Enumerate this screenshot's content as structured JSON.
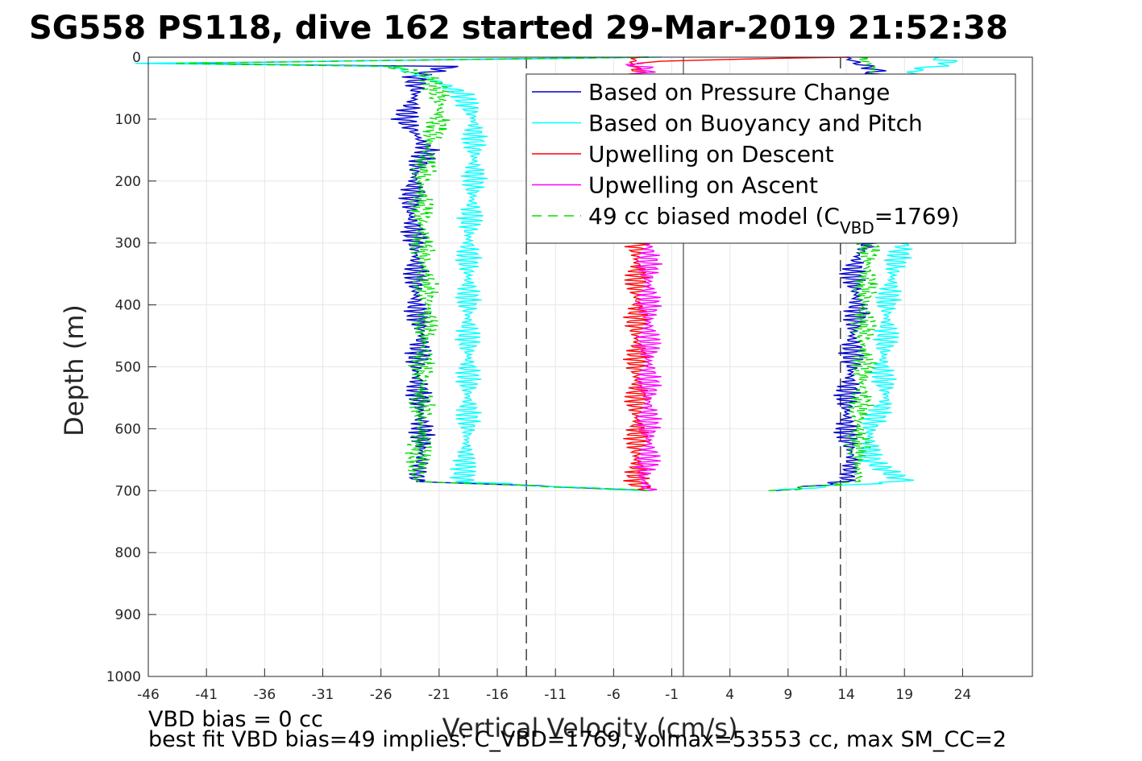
{
  "chart_data": {
    "type": "line",
    "title": "SG558 PS118, dive 162 started 29-Mar-2019 21:52:38",
    "xlabel": "Vertical Velocity (cm/s)",
    "ylabel": "Depth (m)",
    "xlim": [
      -46,
      30
    ],
    "ylim": [
      0,
      1000
    ],
    "y_reversed": true,
    "xticks": [
      -46,
      -41,
      -36,
      -31,
      -26,
      -21,
      -16,
      -11,
      -6,
      -1,
      4,
      9,
      14,
      19,
      24
    ],
    "yticks": [
      0,
      100,
      200,
      300,
      400,
      500,
      600,
      700,
      800,
      900,
      1000
    ],
    "grid": true,
    "legend_position": "top-right",
    "reference_lines": {
      "solid_x": 0,
      "dashed_x": [
        -13.5,
        13.5
      ]
    },
    "legend": [
      {
        "label": "Based on Pressure Change",
        "color": "#0000cc",
        "style": "solid"
      },
      {
        "label": "Based on Buoyancy and Pitch",
        "color": "#00ffff",
        "style": "solid"
      },
      {
        "label": "Upwelling on Descent",
        "color": "#ff0000",
        "style": "solid"
      },
      {
        "label": "Upwelling on Ascent",
        "color": "#ff00ff",
        "style": "solid"
      },
      {
        "label": "49 cc biased model (C",
        "sub": "VBD",
        "tail": "=1769)",
        "color": "#00dd00",
        "style": "dashed"
      }
    ],
    "series": [
      {
        "name": "Based on Pressure Change",
        "color": "#0000cc",
        "descent": [
          [
            0,
            -3
          ],
          [
            10,
            -45
          ],
          [
            15,
            -20
          ],
          [
            30,
            -23
          ],
          [
            60,
            -23
          ],
          [
            100,
            -24
          ],
          [
            150,
            -22
          ],
          [
            180,
            -23
          ],
          [
            250,
            -23.5
          ],
          [
            300,
            -23
          ],
          [
            400,
            -23
          ],
          [
            450,
            -22.5
          ],
          [
            500,
            -23
          ],
          [
            600,
            -22.5
          ],
          [
            650,
            -22.5
          ],
          [
            685,
            -23
          ],
          [
            692,
            -13
          ],
          [
            700,
            -3
          ]
        ],
        "ascent": [
          [
            700,
            8
          ],
          [
            693,
            11
          ],
          [
            685,
            14
          ],
          [
            650,
            14.5
          ],
          [
            600,
            14
          ],
          [
            550,
            14
          ],
          [
            500,
            14.5
          ],
          [
            450,
            14.5
          ],
          [
            400,
            15
          ],
          [
            350,
            14.5
          ],
          [
            320,
            15
          ],
          [
            300,
            16
          ],
          [
            100,
            16
          ],
          [
            50,
            16
          ],
          [
            20,
            16.5
          ],
          [
            10,
            15
          ],
          [
            0,
            14
          ]
        ]
      },
      {
        "name": "Based on Buoyancy and Pitch",
        "color": "#00ffff",
        "descent": [
          [
            0,
            -3
          ],
          [
            10,
            -46
          ],
          [
            15,
            -25
          ],
          [
            40,
            -21
          ],
          [
            60,
            -19
          ],
          [
            100,
            -18
          ],
          [
            150,
            -18
          ],
          [
            200,
            -18
          ],
          [
            300,
            -18.5
          ],
          [
            400,
            -18.5
          ],
          [
            500,
            -18.5
          ],
          [
            600,
            -18.5
          ],
          [
            685,
            -19
          ],
          [
            692,
            -13
          ],
          [
            700,
            -3
          ]
        ],
        "ascent": [
          [
            700,
            8
          ],
          [
            692,
            13
          ],
          [
            685,
            19
          ],
          [
            650,
            16
          ],
          [
            600,
            16
          ],
          [
            550,
            17.5
          ],
          [
            500,
            17
          ],
          [
            450,
            17.5
          ],
          [
            400,
            17.5
          ],
          [
            350,
            18
          ],
          [
            320,
            18.5
          ],
          [
            300,
            19
          ],
          [
            50,
            19
          ],
          [
            20,
            20
          ],
          [
            10,
            23
          ],
          [
            0,
            22
          ]
        ]
      },
      {
        "name": "Upwelling on Descent",
        "color": "#ff0000",
        "descent": [
          [
            0,
            -4
          ],
          [
            10,
            -4.5
          ],
          [
            20,
            -4
          ],
          [
            300,
            -4
          ],
          [
            400,
            -4
          ],
          [
            500,
            -4
          ],
          [
            600,
            -4
          ],
          [
            650,
            -4
          ],
          [
            690,
            -4
          ],
          [
            700,
            -3
          ]
        ],
        "ascent": [
          [
            0,
            14
          ],
          [
            5,
            0
          ],
          [
            10,
            -4
          ]
        ]
      },
      {
        "name": "Upwelling on Ascent",
        "color": "#ff00ff",
        "descent": [
          [
            10,
            -4.5
          ],
          [
            20,
            -3
          ],
          [
            30,
            -4
          ],
          [
            300,
            -3
          ],
          [
            400,
            -3
          ],
          [
            500,
            -3
          ],
          [
            600,
            -3
          ],
          [
            650,
            -3
          ],
          [
            680,
            -3.5
          ],
          [
            700,
            -3
          ]
        ],
        "ascent": []
      },
      {
        "name": "49 cc biased model (CVBD=1769)",
        "color": "#00dd00",
        "descent": [
          [
            0,
            -3
          ],
          [
            10,
            -44
          ],
          [
            15,
            -25
          ],
          [
            30,
            -22
          ],
          [
            60,
            -21
          ],
          [
            100,
            -21
          ],
          [
            150,
            -22
          ],
          [
            200,
            -22.5
          ],
          [
            300,
            -22.5
          ],
          [
            400,
            -22
          ],
          [
            500,
            -22.5
          ],
          [
            600,
            -22.5
          ],
          [
            685,
            -23
          ],
          [
            692,
            -13
          ],
          [
            700,
            -3
          ]
        ],
        "ascent": [
          [
            700,
            8
          ],
          [
            692,
            12
          ],
          [
            685,
            15
          ],
          [
            650,
            15
          ],
          [
            600,
            15
          ],
          [
            500,
            15.5
          ],
          [
            400,
            15.5
          ],
          [
            300,
            16
          ],
          [
            50,
            16
          ],
          [
            20,
            16.5
          ],
          [
            10,
            16
          ],
          [
            0,
            15
          ]
        ]
      }
    ]
  },
  "notes": {
    "vbd_bias": "VBD bias = 0 cc",
    "best_fit": "best fit VBD bias=49 implies: C_VBD=1769, volmax=53553 cc, max SM_CC=2"
  }
}
